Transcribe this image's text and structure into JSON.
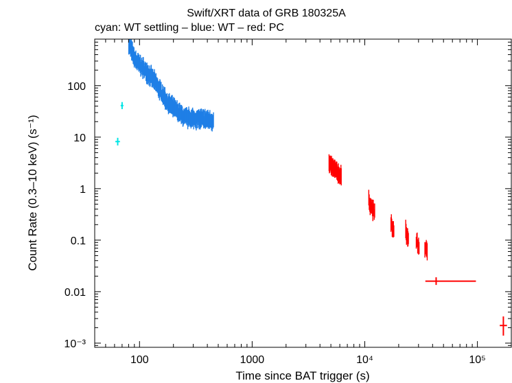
{
  "chart_data": {
    "type": "scatter",
    "title": "Swift/XRT data of GRB 180325A",
    "subtitle": "cyan: WT settling – blue: WT – red: PC",
    "xlabel": "Time since BAT trigger (s)",
    "ylabel": "Count Rate (0.3–10 keV) (s⁻¹)",
    "xscale": "log",
    "yscale": "log",
    "xlim": [
      40,
      200000
    ],
    "ylim": [
      0.00083,
      800
    ],
    "x_ticks": [
      {
        "value": 100,
        "label": "100"
      },
      {
        "value": 1000,
        "label": "1000"
      },
      {
        "value": 10000,
        "label": "10⁴"
      },
      {
        "value": 100000,
        "label": "10⁵"
      }
    ],
    "y_ticks": [
      {
        "value": 100,
        "label": "100"
      },
      {
        "value": 10,
        "label": "10"
      },
      {
        "value": 1,
        "label": "1"
      },
      {
        "value": 0.1,
        "label": "0.1"
      },
      {
        "value": 0.01,
        "label": "0.01"
      },
      {
        "value": 0.001,
        "label": "10⁻³"
      }
    ],
    "series": [
      {
        "name": "WT settling",
        "color": "#00e5e5",
        "points": [
          {
            "x": 64,
            "y": 8.2,
            "xlo": 61,
            "xhi": 67,
            "ylo": 6.9,
            "yhi": 9.7
          },
          {
            "x": 70,
            "y": 41,
            "xlo": 68,
            "xhi": 72,
            "ylo": 35,
            "yhi": 48
          }
        ]
      },
      {
        "name": "WT",
        "color": "#1f7fe6",
        "style": "dense",
        "segments": [
          {
            "t0": 80,
            "t1": 90,
            "r0": 700,
            "r1": 330,
            "n": 22
          },
          {
            "t0": 90,
            "t1": 130,
            "r0": 330,
            "r1": 140,
            "n": 55
          },
          {
            "t0": 130,
            "t1": 180,
            "r0": 140,
            "r1": 45,
            "n": 50
          },
          {
            "t0": 180,
            "t1": 250,
            "r0": 45,
            "r1": 24,
            "n": 50
          },
          {
            "t0": 250,
            "t1": 455,
            "r0": 24,
            "r1": 21,
            "n": 90
          }
        ]
      },
      {
        "name": "PC",
        "color": "#ff0000",
        "style": "dense",
        "segments": [
          {
            "t0": 4800,
            "t1": 6200,
            "r0": 3.0,
            "r1": 1.7,
            "n": 40
          },
          {
            "t0": 10800,
            "t1": 12300,
            "r0": 0.6,
            "r1": 0.32,
            "n": 14
          },
          {
            "t0": 17000,
            "t1": 18200,
            "r0": 0.22,
            "r1": 0.14,
            "n": 8
          },
          {
            "t0": 23000,
            "t1": 24500,
            "r0": 0.15,
            "r1": 0.1,
            "n": 8
          },
          {
            "t0": 28500,
            "t1": 30500,
            "r0": 0.1,
            "r1": 0.07,
            "n": 7
          },
          {
            "t0": 34000,
            "t1": 36000,
            "r0": 0.075,
            "r1": 0.055,
            "n": 6
          }
        ],
        "points": [
          {
            "x": 43000,
            "y": 0.016,
            "xlo": 34500,
            "xhi": 97000,
            "ylo": 0.0135,
            "yhi": 0.019
          },
          {
            "x": 170000,
            "y": 0.0022,
            "xlo": 158000,
            "xhi": 183000,
            "ylo": 0.0014,
            "yhi": 0.0033
          }
        ]
      }
    ]
  }
}
